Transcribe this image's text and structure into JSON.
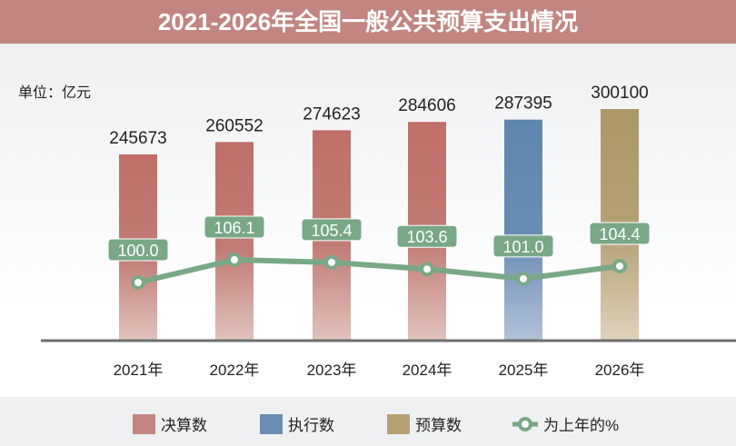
{
  "title": "2021-2026年全国一般公共预算支出情况",
  "unit_label": "单位：亿元",
  "chart_data": {
    "type": "bar+line",
    "title": "2021-2026年全国一般公共预算支出情况",
    "unit": "单位：亿元",
    "categories": [
      "2021年",
      "2022年",
      "2023年",
      "2024年",
      "2025年",
      "2026年"
    ],
    "bar_values": [
      245673,
      260552,
      274623,
      284606,
      287395,
      300100
    ],
    "bar_labels": [
      "245673",
      "260552",
      "274623",
      "284606",
      "287395",
      "300100"
    ],
    "bar_types": [
      "决算数",
      "决算数",
      "决算数",
      "决算数",
      "执行数",
      "预算数"
    ],
    "line_values": [
      100.0,
      106.1,
      105.4,
      103.6,
      101.0,
      104.4
    ],
    "line_labels": [
      "100.0",
      "106.1",
      "105.4",
      "103.6",
      "101.0",
      "104.4"
    ],
    "legend": [
      "决算数",
      "执行数",
      "预算数",
      "为上年的%"
    ],
    "legend_placement": "bottom",
    "grid": false,
    "colors": {
      "决算数": "#c0766f",
      "执行数": "#6389b0",
      "预算数": "#b5a274",
      "为上年的%": "#78a886"
    }
  },
  "colors": {
    "title_bg": "#c28581",
    "axis": "#6e6e6e"
  }
}
